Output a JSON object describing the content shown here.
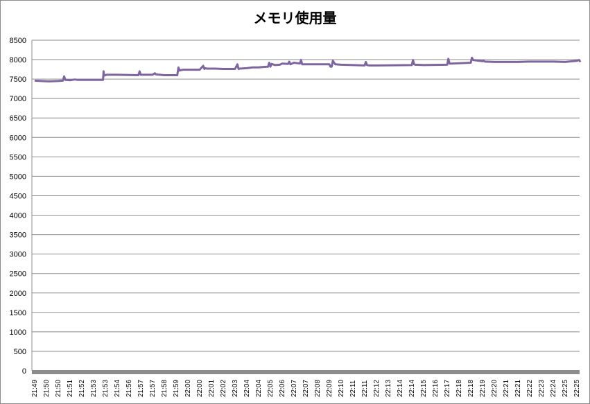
{
  "chart_data": {
    "type": "line",
    "title": "メモリ使用量",
    "xlabel": "",
    "ylabel": "",
    "ylim": [
      0,
      8500
    ],
    "yticks": [
      0,
      500,
      1000,
      1500,
      2000,
      2500,
      3000,
      3500,
      4000,
      4500,
      5000,
      5500,
      6000,
      6500,
      7000,
      7500,
      8000,
      8500
    ],
    "xticks": [
      "21:49",
      "21:50",
      "21:50",
      "21:51",
      "21:52",
      "21:53",
      "21:53",
      "21:54",
      "21:56",
      "21:57",
      "21:57",
      "21:58",
      "21:59",
      "22:00",
      "22:00",
      "22:01",
      "22:02",
      "22:03",
      "22:04",
      "22:04",
      "22:05",
      "22:06",
      "22:07",
      "22:07",
      "22:08",
      "22:09",
      "22:10",
      "22:11",
      "22:11",
      "22:12",
      "22:13",
      "22:14",
      "22:14",
      "22:15",
      "22:16",
      "22:17",
      "22:18",
      "22:18",
      "22:19",
      "22:20",
      "22:21",
      "22:21",
      "22:22",
      "22:23",
      "22:24",
      "22:25",
      "22:25"
    ],
    "grid": true,
    "legend": "none",
    "line_color": "#7f65a0",
    "series": [
      {
        "x": [
          0,
          1.2,
          2.0,
          2.4,
          2.5,
          2.6,
          3.0,
          3.4,
          3.6,
          5.8,
          5.85,
          5.9,
          6.0,
          6.1,
          7.0,
          8.8,
          8.9,
          9.0,
          10.0,
          10.2,
          10.3,
          11.0,
          12.1,
          12.2,
          12.3,
          12.4,
          12.6,
          14.0,
          14.3,
          14.4,
          14.5,
          14.6,
          15.3,
          16.0,
          17.0,
          17.2,
          17.3,
          17.4,
          18.0,
          18.5,
          19.0,
          19.3,
          19.8,
          19.9,
          20.0,
          20.1,
          20.4,
          20.8,
          21.0,
          21.5,
          21.6,
          21.7,
          22.0,
          22.5,
          22.6,
          22.7,
          23.0,
          25.0,
          25.1,
          25.2,
          25.3,
          25.5,
          26.0,
          27.0,
          28.0,
          28.1,
          28.2,
          28.4,
          29.0,
          32.0,
          32.1,
          32.2,
          32.3,
          33.0,
          35.0,
          35.1,
          35.2,
          35.4,
          37.0,
          37.1,
          37.2,
          37.5,
          38.0,
          38.1,
          38.2,
          39.0,
          41.0,
          42.0,
          44.0,
          45.0,
          46.0,
          46.2,
          46.3
        ],
        "values": [
          7460,
          7440,
          7450,
          7460,
          7570,
          7480,
          7470,
          7490,
          7480,
          7480,
          7700,
          7590,
          7600,
          7610,
          7610,
          7600,
          7700,
          7610,
          7610,
          7650,
          7620,
          7600,
          7600,
          7800,
          7720,
          7730,
          7740,
          7740,
          7840,
          7760,
          7780,
          7770,
          7770,
          7760,
          7760,
          7880,
          7760,
          7770,
          7780,
          7800,
          7800,
          7810,
          7820,
          7920,
          7820,
          7890,
          7860,
          7870,
          7900,
          7890,
          7950,
          7880,
          7920,
          7900,
          7990,
          7880,
          7880,
          7880,
          7820,
          7820,
          7970,
          7880,
          7870,
          7860,
          7850,
          7940,
          7860,
          7850,
          7850,
          7860,
          7990,
          7880,
          7870,
          7860,
          7870,
          8020,
          7900,
          7900,
          7920,
          8050,
          7990,
          7980,
          7960,
          7970,
          7950,
          7940,
          7940,
          7950,
          7950,
          7940,
          7970,
          7990,
          7940
        ]
      }
    ]
  }
}
